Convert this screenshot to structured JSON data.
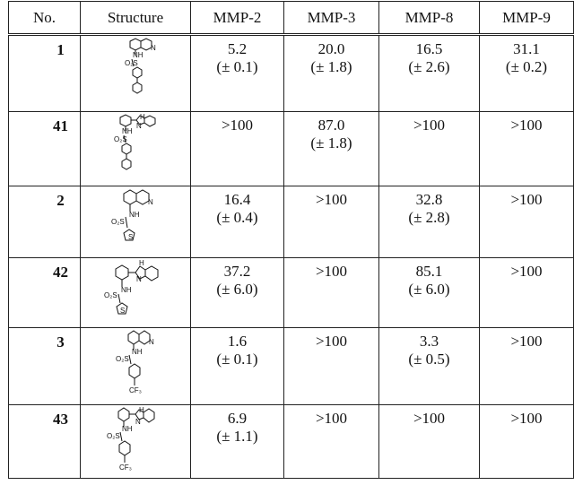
{
  "table": {
    "headers": {
      "no": "No.",
      "structure": "Structure",
      "mmp2": "MMP-2",
      "mmp3": "MMP-3",
      "mmp8": "MMP-8",
      "mmp9": "MMP-9"
    },
    "rows": [
      {
        "no": "1",
        "structure_icon": "quinoline-biphenyl-sulfonamide-icon",
        "mmp2": {
          "value": "5.2",
          "error": "(± 0.1)"
        },
        "mmp3": {
          "value": "20.0",
          "error": "(± 1.8)"
        },
        "mmp8": {
          "value": "16.5",
          "error": "(± 2.6)"
        },
        "mmp9": {
          "value": "31.1",
          "error": "(± 0.2)"
        }
      },
      {
        "no": "41",
        "structure_icon": "benzimidazole-biphenyl-sulfonamide-icon",
        "mmp2": {
          "value": ">100",
          "error": ""
        },
        "mmp3": {
          "value": "87.0",
          "error": "(± 1.8)"
        },
        "mmp8": {
          "value": ">100",
          "error": ""
        },
        "mmp9": {
          "value": ">100",
          "error": ""
        }
      },
      {
        "no": "2",
        "structure_icon": "quinoline-thiophene-sulfonamide-icon",
        "mmp2": {
          "value": "16.4",
          "error": "(± 0.4)"
        },
        "mmp3": {
          "value": ">100",
          "error": ""
        },
        "mmp8": {
          "value": "32.8",
          "error": "(± 2.8)"
        },
        "mmp9": {
          "value": ">100",
          "error": ""
        }
      },
      {
        "no": "42",
        "structure_icon": "benzimidazole-thiophene-sulfonamide-icon",
        "mmp2": {
          "value": "37.2",
          "error": "(± 6.0)"
        },
        "mmp3": {
          "value": ">100",
          "error": ""
        },
        "mmp8": {
          "value": "85.1",
          "error": "(± 6.0)"
        },
        "mmp9": {
          "value": ">100",
          "error": ""
        }
      },
      {
        "no": "3",
        "structure_icon": "quinoline-trifluoromethylphenyl-sulfonamide-icon",
        "mmp2": {
          "value": "1.6",
          "error": "(± 0.1)"
        },
        "mmp3": {
          "value": ">100",
          "error": ""
        },
        "mmp8": {
          "value": "3.3",
          "error": "(± 0.5)"
        },
        "mmp9": {
          "value": ">100",
          "error": ""
        }
      },
      {
        "no": "43",
        "structure_icon": "benzimidazole-trifluoromethylphenyl-sulfonamide-icon",
        "mmp2": {
          "value": "6.9",
          "error": "(± 1.1)"
        },
        "mmp3": {
          "value": ">100",
          "error": ""
        },
        "mmp8": {
          "value": ">100",
          "error": ""
        },
        "mmp9": {
          "value": ">100",
          "error": ""
        }
      }
    ],
    "atom_labels": {
      "n": "N",
      "nh": "NH",
      "h": "H",
      "s": "S",
      "o2s": "O₂S",
      "cf3": "CF₃"
    }
  }
}
